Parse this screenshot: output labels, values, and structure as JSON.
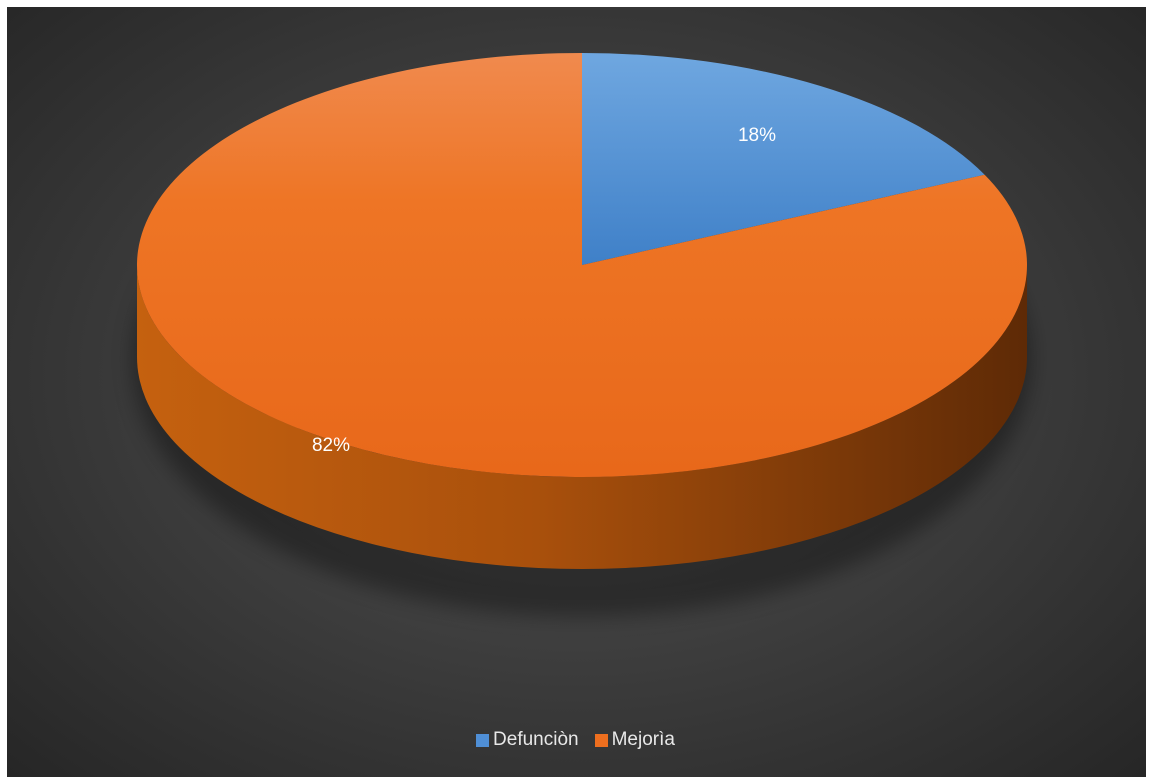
{
  "chart_data": {
    "type": "pie",
    "style": "3d",
    "title": "",
    "categories": [
      "Defunciòn",
      "Mejorìa"
    ],
    "values": [
      18,
      82
    ],
    "data_labels": [
      "18%",
      "82%"
    ],
    "colors": [
      "#4f8fd6",
      "#ee6f1f"
    ],
    "legend_position": "bottom",
    "background": "dark-gradient"
  }
}
